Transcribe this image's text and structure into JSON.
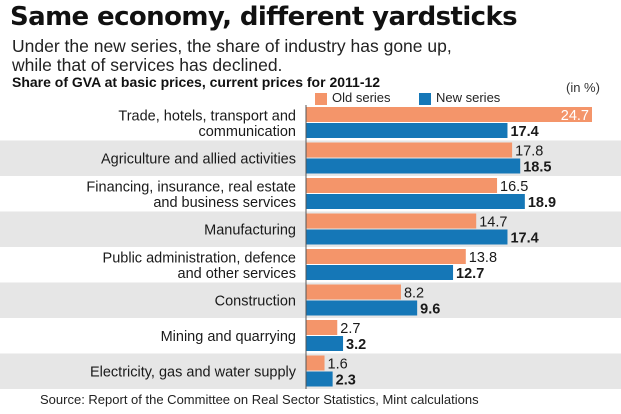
{
  "header": {
    "title": "Same economy, different yardsticks",
    "subtitle_line1": "Under the new series, the share of industry has gone up,",
    "subtitle_line2": "while that of services has declined.",
    "chart_heading": "Share of GVA at basic prices, current prices for 2011-12",
    "unit": "(in %)"
  },
  "source": "Source: Report of the Committee on Real Sector Statistics, Mint calculations",
  "colors": {
    "old_series": "#f4956a",
    "new_series": "#1577b7",
    "band": "#e6e6e6"
  },
  "chart_data": {
    "type": "bar",
    "orientation": "horizontal",
    "categories": [
      [
        "Trade, hotels, transport and",
        "communication"
      ],
      [
        "Agriculture and allied activities"
      ],
      [
        "Financing, insurance, real estate",
        "and business services"
      ],
      [
        "Manufacturing"
      ],
      [
        "Public administration, defence",
        "and other services"
      ],
      [
        "Construction"
      ],
      [
        "Mining and quarrying"
      ],
      [
        "Electricity, gas and water supply"
      ]
    ],
    "series": [
      {
        "name": "Old series",
        "values": [
          24.7,
          17.8,
          16.5,
          14.7,
          13.8,
          8.2,
          2.7,
          1.6
        ]
      },
      {
        "name": "New series",
        "values": [
          17.4,
          18.5,
          18.9,
          17.4,
          12.7,
          9.6,
          3.2,
          2.3
        ]
      }
    ],
    "value_labels": [
      [
        "24.7",
        "17.8",
        "16.5",
        "14.7",
        "13.8",
        "8.2",
        "2.7",
        "1.6"
      ],
      [
        "17.4",
        "18.5",
        "18.9",
        "17.4",
        "12.7",
        "9.6",
        "3.2",
        "2.3"
      ]
    ],
    "xlim": [
      0,
      24.7
    ],
    "legend_position": "top",
    "grid": false
  }
}
